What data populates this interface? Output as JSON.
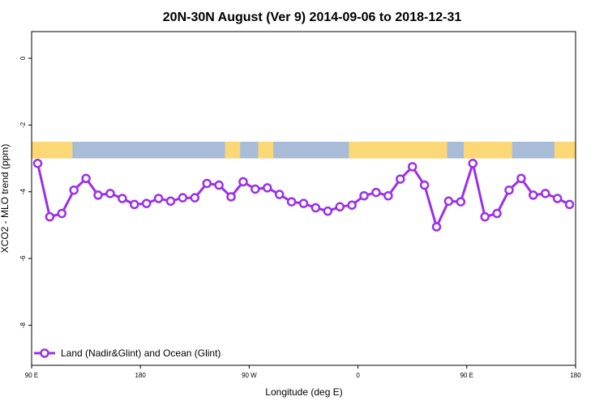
{
  "chart_data": {
    "type": "line",
    "title": "20N-30N August (Ver 9)   2014-09-06 to 2018-12-31",
    "xlabel": "Longitude (deg E)",
    "ylabel": "XCO2 - MLO trend (ppm)",
    "xlim": [
      90,
      450
    ],
    "ylim": [
      -9.2,
      0.8
    ],
    "x_ticks": [
      {
        "value": 90,
        "label": "90 E"
      },
      {
        "value": 162,
        "label": "180"
      },
      {
        "value": 234,
        "label": "90 W"
      },
      {
        "value": 306,
        "label": "0"
      },
      {
        "value": 378,
        "label": "90 E"
      },
      {
        "value": 450,
        "label": "180"
      }
    ],
    "y_ticks": [
      {
        "value": 0,
        "label": "0"
      },
      {
        "value": -2,
        "label": "-2"
      },
      {
        "value": -4,
        "label": "-4"
      },
      {
        "value": -6,
        "label": "-6"
      },
      {
        "value": -8,
        "label": "-8"
      }
    ],
    "grid": false,
    "legend_position": "bottom-left",
    "map_strip": {
      "y_top": -2.5,
      "y_bottom": -3.0,
      "ocean_color": "#a8bcd8",
      "land_color": "#fcd775"
    },
    "land_segments": [
      [
        90,
        117
      ],
      [
        218,
        228
      ],
      [
        240,
        250
      ],
      [
        300,
        365
      ],
      [
        376,
        408
      ],
      [
        436,
        450
      ]
    ],
    "series": [
      {
        "name": "Land (Nadir&Glint) and Ocean (Glint)",
        "color": "#9b30e8",
        "x": [
          94,
          102,
          110,
          118,
          126,
          134,
          142,
          150,
          158,
          166,
          174,
          182,
          190,
          198,
          206,
          214,
          222,
          230,
          238,
          246,
          254,
          262,
          270,
          278,
          286,
          294,
          302,
          310,
          318,
          326,
          334,
          342,
          350,
          358,
          366,
          374,
          382,
          390,
          398,
          406,
          414,
          422,
          430,
          438,
          446
        ],
        "values": [
          -3.15,
          -4.75,
          -4.65,
          -3.95,
          -3.6,
          -4.1,
          -4.05,
          -4.2,
          -4.38,
          -4.35,
          -4.2,
          -4.28,
          -4.18,
          -4.18,
          -3.75,
          -3.8,
          -4.15,
          -3.7,
          -3.92,
          -3.88,
          -4.08,
          -4.3,
          -4.35,
          -4.48,
          -4.58,
          -4.45,
          -4.4,
          -4.12,
          -4.02,
          -4.12,
          -3.62,
          -3.25,
          -3.8,
          -5.05,
          -4.28,
          -4.3,
          -3.15,
          -4.75,
          -4.65,
          -3.95,
          -3.6,
          -4.1,
          -4.05,
          -4.2,
          -4.38
        ]
      }
    ]
  }
}
